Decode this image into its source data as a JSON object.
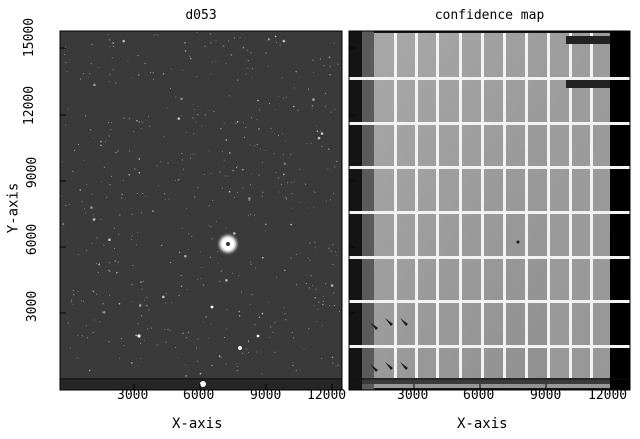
{
  "panels": {
    "left": {
      "title": "d053",
      "xlabel": "X-axis",
      "ylabel": "Y-axis"
    },
    "right": {
      "title": "confidence map",
      "xlabel": "X-axis"
    }
  },
  "axes": {
    "x_ticks": [
      "3000",
      "6000",
      "9000",
      "12000"
    ],
    "y_ticks": [
      "3000",
      "6000",
      "9000",
      "12000",
      "15000"
    ]
  },
  "colors": {
    "background": "#ffffff",
    "frame": "#000000",
    "sky": "#3a3a3a",
    "confidence_field": "#9a9a9a",
    "seam": "#eeeeee"
  }
}
